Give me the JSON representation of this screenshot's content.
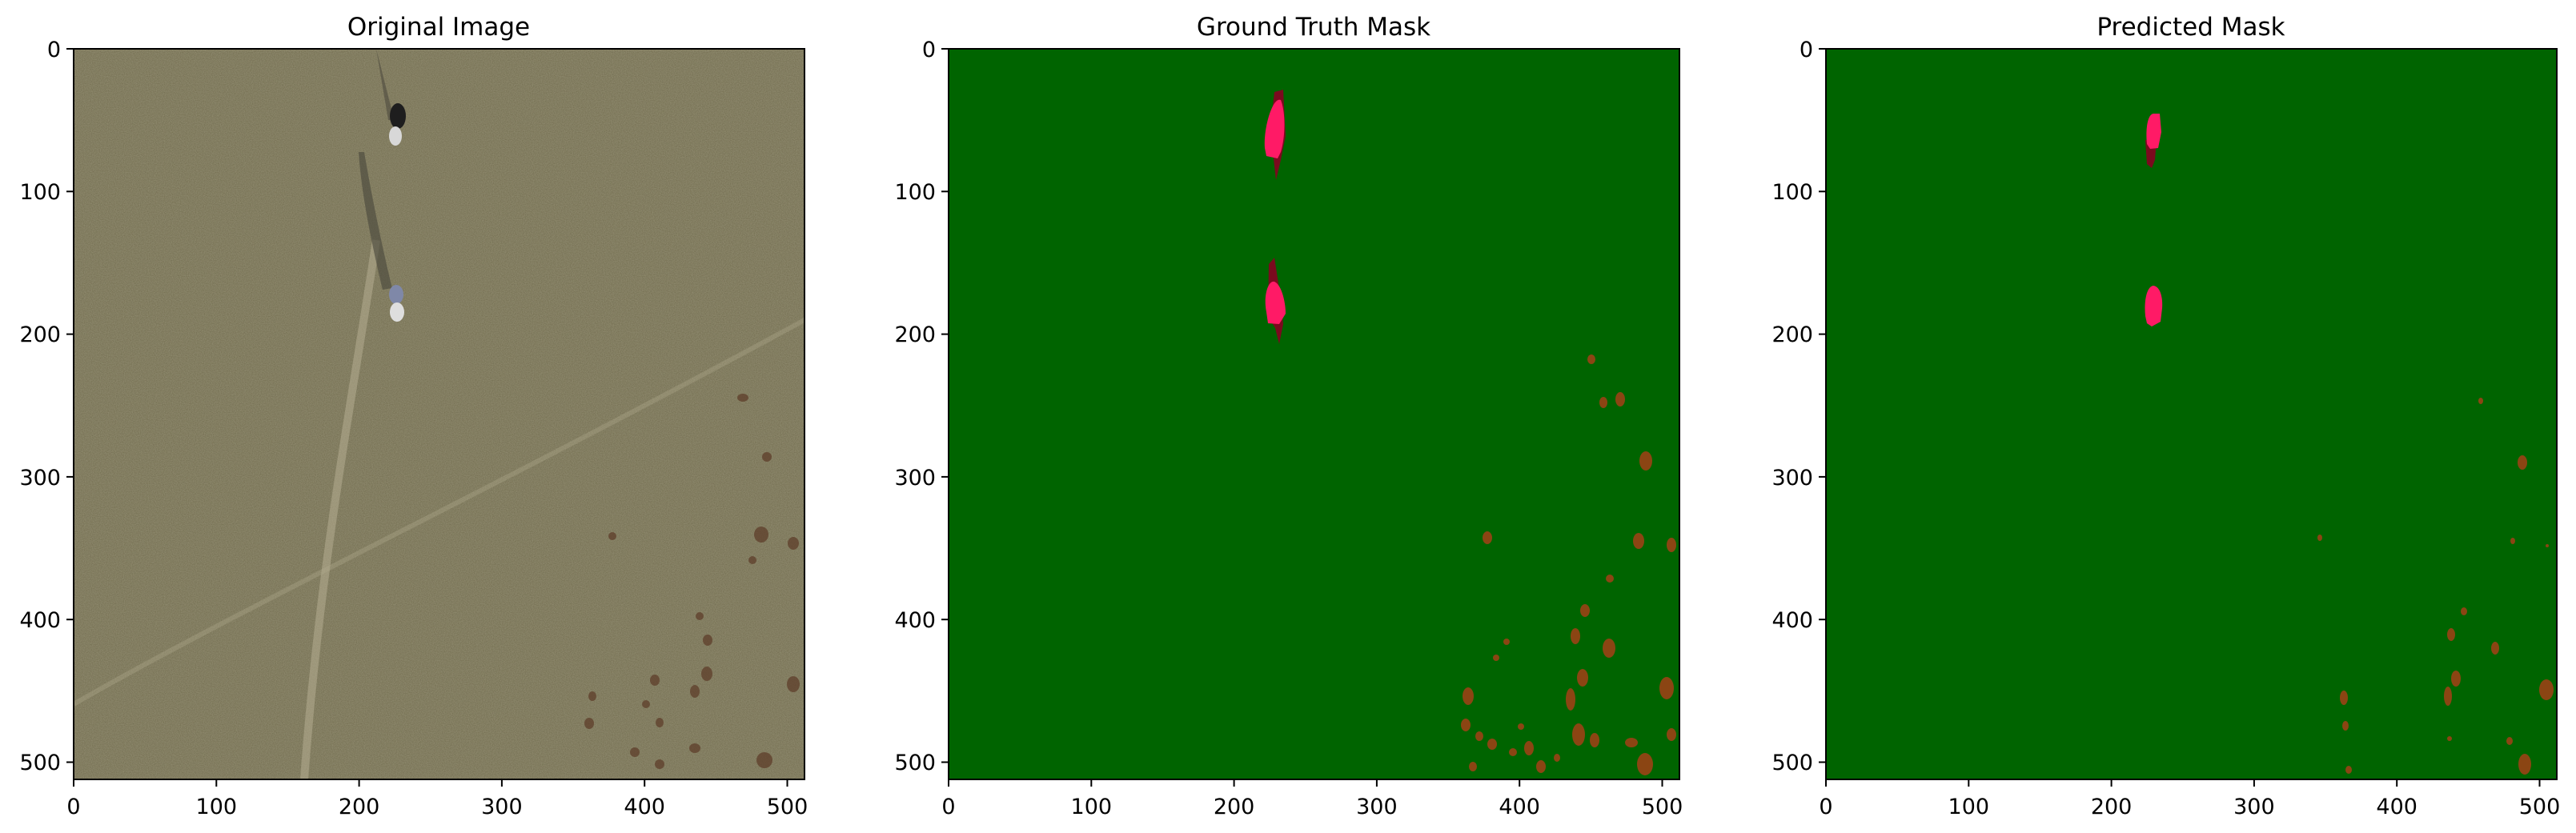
{
  "figure": {
    "panels": [
      {
        "id": "original",
        "title": "Original Image",
        "xticks": [
          "0",
          "100",
          "200",
          "300",
          "400",
          "500"
        ],
        "yticks": [
          "0",
          "100",
          "200",
          "300",
          "400",
          "500"
        ],
        "image_kind": "aerial-photo"
      },
      {
        "id": "ground-truth",
        "title": "Ground Truth Mask",
        "xticks": [
          "0",
          "100",
          "200",
          "300",
          "400",
          "500"
        ],
        "yticks": [
          "0",
          "100",
          "200",
          "300",
          "400",
          "500"
        ],
        "image_kind": "segmentation-mask"
      },
      {
        "id": "predicted",
        "title": "Predicted Mask",
        "xticks": [
          "0",
          "100",
          "200",
          "300",
          "400",
          "500"
        ],
        "yticks": [
          "0",
          "100",
          "200",
          "300",
          "400",
          "500"
        ],
        "image_kind": "segmentation-mask"
      }
    ]
  },
  "colors": {
    "background_class": "#006400",
    "person_class": "#ff1a66",
    "shadow_class": "#7a0a1e",
    "shrub_class": "#8b4513",
    "grass_photo": "#8f8a6e"
  }
}
